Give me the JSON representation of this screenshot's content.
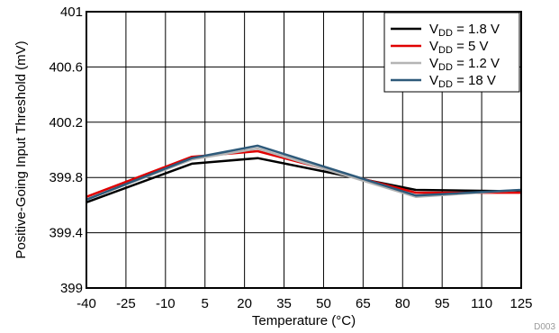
{
  "chart_data": {
    "type": "line",
    "xlabel": "Temperature (°C)",
    "ylabel": "Positive-Going Input Threshold (mV)",
    "x": [
      -40,
      -25,
      -10,
      5,
      20,
      35,
      50,
      65,
      80,
      95,
      110,
      125
    ],
    "xticks": [
      "-40",
      "-25",
      "-10",
      "5",
      "20",
      "35",
      "50",
      "65",
      "80",
      "95",
      "110",
      "125"
    ],
    "yticks": [
      "399",
      "399.4",
      "399.8",
      "400.2",
      "400.6",
      "401"
    ],
    "xlim": [
      -40,
      125
    ],
    "ylim": [
      399,
      401
    ],
    "grid": true,
    "legend_position": "top-right",
    "series": [
      {
        "name": "VDD = 1.8 V",
        "label_main": "V",
        "label_sub": "DD",
        "label_rest": " = 1.8 V",
        "color": "#000000",
        "x": [
          -40,
          0,
          25,
          85,
          125
        ],
        "y": [
          399.62,
          399.9,
          399.94,
          399.71,
          399.7
        ]
      },
      {
        "name": "VDD = 5 V",
        "label_main": "V",
        "label_sub": "DD",
        "label_rest": " = 5 V",
        "color": "#e00000",
        "x": [
          -40,
          0,
          25,
          85,
          125
        ],
        "y": [
          399.66,
          399.95,
          399.99,
          399.69,
          399.69
        ]
      },
      {
        "name": "VDD = 1.2 V",
        "label_main": "V",
        "label_sub": "DD",
        "label_rest": " = 1.2 V",
        "color": "#b4b4b4",
        "x": [
          -40,
          0,
          25,
          85,
          125
        ],
        "y": [
          399.64,
          399.93,
          400.01,
          399.66,
          399.71
        ]
      },
      {
        "name": "VDD = 18 V",
        "label_main": "V",
        "label_sub": "DD",
        "label_rest": " = 18 V",
        "color": "#2e5a7a",
        "x": [
          -40,
          0,
          25,
          85,
          125
        ],
        "y": [
          399.64,
          399.94,
          400.03,
          399.67,
          399.71
        ]
      }
    ],
    "figure_code": "D003"
  }
}
